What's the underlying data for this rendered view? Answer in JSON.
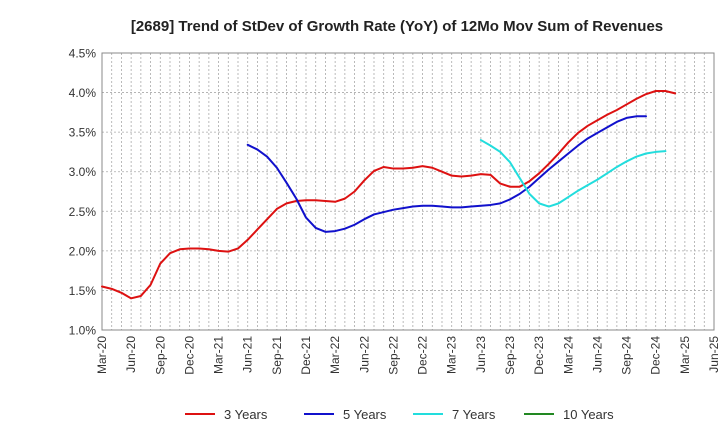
{
  "chart_data": {
    "type": "line",
    "title": "[2689]  Trend of StDev of Growth Rate (YoY) of 12Mo Mov Sum of Revenues",
    "xlabel": "",
    "ylabel": "",
    "ylim": [
      1.0,
      4.5
    ],
    "y_ticks": [
      {
        "value": 1.0,
        "label": "1.0%"
      },
      {
        "value": 1.5,
        "label": "1.5%"
      },
      {
        "value": 2.0,
        "label": "2.0%"
      },
      {
        "value": 2.5,
        "label": "2.5%"
      },
      {
        "value": 3.0,
        "label": "3.0%"
      },
      {
        "value": 3.5,
        "label": "3.5%"
      },
      {
        "value": 4.0,
        "label": "4.0%"
      },
      {
        "value": 4.5,
        "label": "4.5%"
      }
    ],
    "x_ticks": [
      {
        "index": 0,
        "label": "Mar-20"
      },
      {
        "index": 3,
        "label": "Jun-20"
      },
      {
        "index": 6,
        "label": "Sep-20"
      },
      {
        "index": 9,
        "label": "Dec-20"
      },
      {
        "index": 12,
        "label": "Mar-21"
      },
      {
        "index": 15,
        "label": "Jun-21"
      },
      {
        "index": 18,
        "label": "Sep-21"
      },
      {
        "index": 21,
        "label": "Dec-21"
      },
      {
        "index": 24,
        "label": "Mar-22"
      },
      {
        "index": 27,
        "label": "Jun-22"
      },
      {
        "index": 30,
        "label": "Sep-22"
      },
      {
        "index": 33,
        "label": "Dec-22"
      },
      {
        "index": 36,
        "label": "Mar-23"
      },
      {
        "index": 39,
        "label": "Jun-23"
      },
      {
        "index": 42,
        "label": "Sep-23"
      },
      {
        "index": 45,
        "label": "Dec-23"
      },
      {
        "index": 48,
        "label": "Mar-24"
      },
      {
        "index": 51,
        "label": "Jun-24"
      },
      {
        "index": 54,
        "label": "Sep-24"
      },
      {
        "index": 57,
        "label": "Dec-24"
      },
      {
        "index": 60,
        "label": "Mar-25"
      },
      {
        "index": 63,
        "label": "Jun-25"
      }
    ],
    "x_count": 64,
    "grid": true,
    "legend_position": "bottom",
    "series": [
      {
        "name": "3 Years",
        "color": "#dd1111",
        "start_index": 0,
        "values": [
          1.55,
          1.52,
          1.47,
          1.4,
          1.43,
          1.57,
          1.84,
          1.97,
          2.02,
          2.03,
          2.03,
          2.02,
          2.0,
          1.99,
          2.03,
          2.14,
          2.27,
          2.4,
          2.53,
          2.6,
          2.63,
          2.64,
          2.64,
          2.63,
          2.62,
          2.66,
          2.75,
          2.89,
          3.01,
          3.06,
          3.04,
          3.04,
          3.05,
          3.07,
          3.05,
          3.0,
          2.95,
          2.94,
          2.95,
          2.97,
          2.96,
          2.85,
          2.81,
          2.81,
          2.88,
          2.98,
          3.1,
          3.23,
          3.37,
          3.49,
          3.58,
          3.65,
          3.72,
          3.78,
          3.85,
          3.92,
          3.98,
          4.02,
          4.02,
          3.99
        ]
      },
      {
        "name": "5 Years",
        "color": "#1111cc",
        "start_index": 15,
        "values": [
          3.34,
          3.28,
          3.19,
          3.05,
          2.86,
          2.66,
          2.42,
          2.29,
          2.24,
          2.25,
          2.28,
          2.33,
          2.4,
          2.46,
          2.49,
          2.52,
          2.54,
          2.56,
          2.57,
          2.57,
          2.56,
          2.55,
          2.55,
          2.56,
          2.57,
          2.58,
          2.6,
          2.65,
          2.72,
          2.81,
          2.92,
          3.03,
          3.13,
          3.23,
          3.33,
          3.42,
          3.49,
          3.56,
          3.63,
          3.68,
          3.7,
          3.7
        ]
      },
      {
        "name": "7 Years",
        "color": "#22dddd",
        "start_index": 39,
        "values": [
          3.4,
          3.33,
          3.25,
          3.12,
          2.92,
          2.72,
          2.6,
          2.56,
          2.6,
          2.68,
          2.76,
          2.83,
          2.9,
          2.98,
          3.06,
          3.13,
          3.19,
          3.23,
          3.25,
          3.26
        ]
      },
      {
        "name": "10 Years",
        "color": "#228822",
        "start_index": 0,
        "values": []
      }
    ]
  }
}
